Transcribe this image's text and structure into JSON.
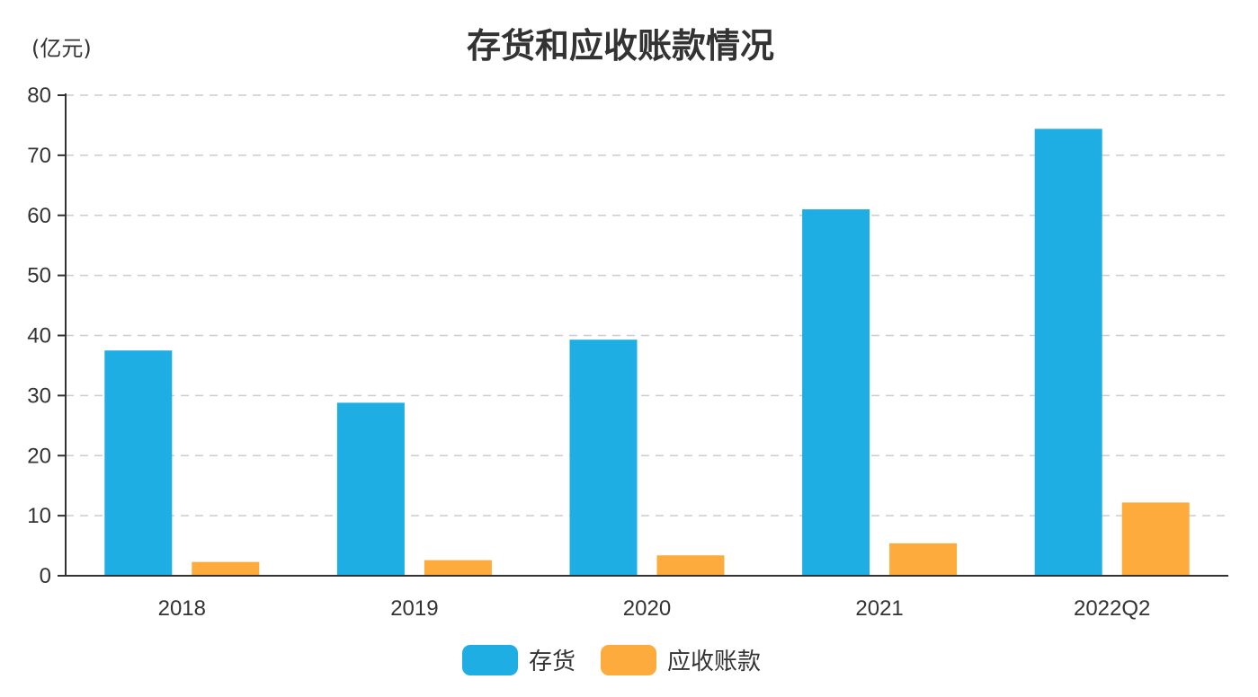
{
  "chart_data": {
    "type": "bar",
    "title": "存货和应收账款情况",
    "ylabel": "(亿元)",
    "xlabel": "",
    "categories": [
      "2018",
      "2019",
      "2020",
      "2021",
      "2022Q2"
    ],
    "series": [
      {
        "name": "存货",
        "color": "#1eaee3",
        "values": [
          37.5,
          28.8,
          39.3,
          61.0,
          74.4
        ]
      },
      {
        "name": "应收账款",
        "color": "#fdab3d",
        "values": [
          2.3,
          2.6,
          3.4,
          5.4,
          12.2
        ]
      }
    ],
    "ylim": [
      0,
      80
    ],
    "yticks": [
      0,
      10,
      20,
      30,
      40,
      50,
      60,
      70,
      80
    ],
    "grid": true,
    "legend_position": "bottom-center"
  }
}
